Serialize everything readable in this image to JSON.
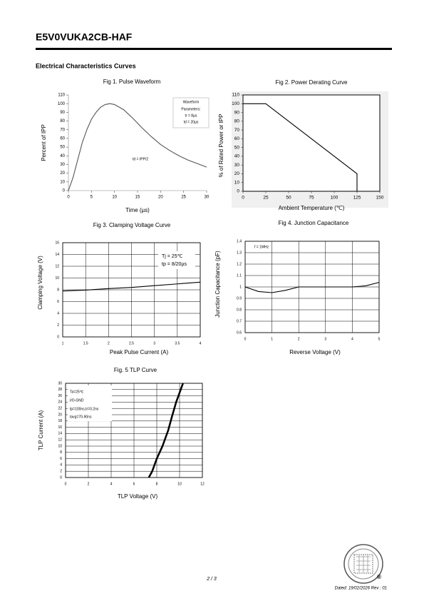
{
  "header": {
    "title": "E5V0VUKA2CB-HAF"
  },
  "section_title": "Electrical Characteristics Curves",
  "chart_data": [
    {
      "type": "line",
      "title": "Fig 1. Pulse Waveform",
      "xlabel": "Time (µs)",
      "ylabel": "Percent of IPP",
      "x": [
        0,
        1,
        2,
        3,
        4,
        5,
        6,
        7,
        8,
        9,
        10,
        12,
        14,
        16,
        18,
        20,
        22,
        24,
        26,
        28,
        30
      ],
      "values": [
        0,
        15,
        35,
        55,
        70,
        82,
        90,
        96,
        99,
        100,
        99,
        93,
        83,
        72,
        62,
        53,
        46,
        40,
        35,
        31,
        27
      ],
      "color": "#555555",
      "xlim": [
        0,
        30
      ],
      "xticks": [
        0,
        5,
        10,
        15,
        20,
        25,
        30
      ],
      "ylim": [
        0,
        110
      ],
      "yticks": [
        0,
        10,
        20,
        30,
        40,
        50,
        60,
        70,
        80,
        90,
        100,
        110
      ],
      "grid": false,
      "annotations": [
        "Waveform",
        "Parameters:",
        "tr = 8µs",
        "td = 20µs",
        "td = IPP/2"
      ]
    },
    {
      "type": "line",
      "title": "Fig 2. Power Derating Curve",
      "xlabel": "Ambient Temperature (℃)",
      "ylabel": "% of Rated Power or IPP",
      "x": [
        0,
        25,
        125,
        125
      ],
      "values": [
        100,
        100,
        20,
        0
      ],
      "color": "#000000",
      "xlim": [
        0,
        150
      ],
      "xticks": [
        0,
        25,
        50,
        75,
        100,
        125,
        150
      ],
      "ylim": [
        0,
        110
      ],
      "yticks": [
        0,
        10,
        20,
        30,
        40,
        50,
        60,
        70,
        80,
        90,
        100,
        110
      ],
      "grid": false,
      "annotations": []
    },
    {
      "type": "line",
      "title": "Fig 3. Clamping Voltage Curve",
      "xlabel": "Peak Pulse Current   (A)",
      "ylabel": "Clamping Voltage (V)",
      "x": [
        1,
        1.5,
        2,
        2.5,
        3,
        3.5,
        4
      ],
      "values": [
        7.8,
        7.95,
        8.2,
        8.4,
        8.7,
        9.0,
        9.3
      ],
      "color": "#000000",
      "xlim": [
        1,
        4
      ],
      "xticks": [
        1,
        1.5,
        2,
        2.5,
        3,
        3.5,
        4
      ],
      "ylim": [
        0,
        16
      ],
      "yticks": [
        0,
        2,
        4,
        6,
        8,
        10,
        12,
        14,
        16
      ],
      "grid": true,
      "annotations": [
        "Tj = 25℃",
        "tp = 8/20µs"
      ]
    },
    {
      "type": "line",
      "title": "Fig 4. Junction Capacitance",
      "xlabel": "Reverse Voltage (V)",
      "ylabel": "Junction Capacitance (pF)",
      "x": [
        0,
        0.5,
        1,
        1.5,
        2,
        2.5,
        3,
        3.5,
        4,
        4.5,
        5
      ],
      "values": [
        1.0,
        0.96,
        0.95,
        0.97,
        1.0,
        1.0,
        1.0,
        1.0,
        1.0,
        1.01,
        1.04
      ],
      "color": "#000000",
      "xlim": [
        0,
        5
      ],
      "xticks": [
        0,
        1,
        2,
        3,
        4,
        5
      ],
      "ylim": [
        0.6,
        1.4
      ],
      "yticks": [
        0.6,
        0.7,
        0.8,
        0.9,
        1,
        1.1,
        1.2,
        1.3,
        1.4
      ],
      "grid": true,
      "annotations": [
        "f = 1MHz"
      ]
    },
    {
      "type": "line",
      "title": "Fig. 5 TLP Curve",
      "xlabel": "TLP Voltage (V)",
      "ylabel": "TLP Current (A)",
      "x": [
        7.3,
        7.6,
        8,
        8.5,
        9,
        9.3,
        9.7,
        10,
        10.3
      ],
      "values": [
        0,
        2,
        6,
        10,
        15,
        19,
        24,
        27,
        30
      ],
      "color": "#000000",
      "xlim": [
        0,
        12
      ],
      "xticks": [
        0,
        2,
        4,
        6,
        8,
        10,
        12
      ],
      "ylim": [
        0,
        30
      ],
      "yticks": [
        0,
        2,
        4,
        6,
        8,
        10,
        12,
        14,
        16,
        18,
        20,
        22,
        24,
        26,
        28,
        30
      ],
      "grid": true,
      "annotations": [
        "Ta=25℃",
        "I/O-GND",
        "tp=100ns,tr=0.2ns",
        "tavg=70-90ns"
      ]
    }
  ],
  "footer": {
    "page": "2 / 3",
    "dated": "Dated: 19/02/2026  Rev : 01",
    "logo_mark": "®"
  }
}
